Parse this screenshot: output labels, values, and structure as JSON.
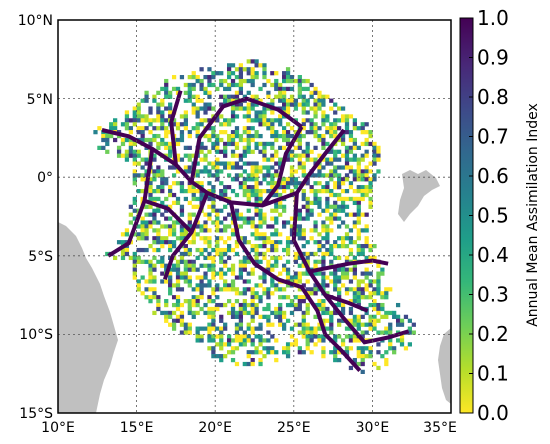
{
  "map": {
    "lat_ticks": [
      "10°N",
      "5°N",
      "0°",
      "5°S",
      "10°S",
      "15°S"
    ],
    "lon_ticks": [
      "10°E",
      "15°E",
      "20°E",
      "25°E",
      "30°E",
      "35°E"
    ],
    "extent": {
      "lon_min": 10,
      "lon_max": 35,
      "lat_min": -15,
      "lat_max": 10
    },
    "land_color": "#c0c0c0",
    "grid": true
  },
  "colorbar": {
    "label": "Annual Mean Assimilation Index",
    "ticks": [
      "1.0",
      "0.9",
      "0.8",
      "0.7",
      "0.6",
      "0.5",
      "0.4",
      "0.3",
      "0.2",
      "0.1",
      "0.0"
    ],
    "vmin": 0.0,
    "vmax": 1.0,
    "colormap": "viridis",
    "colors": [
      "#fde725",
      "#b5de2b",
      "#6ece58",
      "#35b779",
      "#1f9e89",
      "#26828e",
      "#31688e",
      "#3e4989",
      "#482878",
      "#440154"
    ]
  }
}
